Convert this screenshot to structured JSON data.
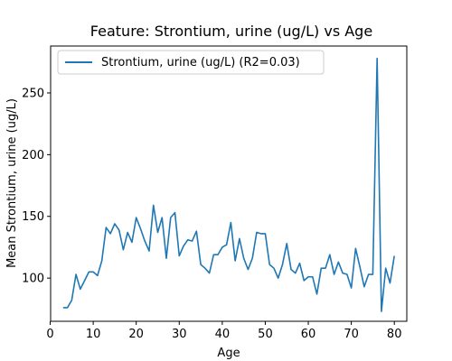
{
  "chart_data": {
    "type": "line",
    "title": "Feature: Strontium, urine (ug/L) vs Age",
    "xlabel": "Age",
    "ylabel": "Mean Strontium, urine (ug/L)",
    "xlim": [
      0.1,
      82.9
    ],
    "ylim": [
      65,
      288
    ],
    "xticks": [
      0,
      10,
      20,
      30,
      40,
      50,
      60,
      70,
      80
    ],
    "yticks": [
      100,
      150,
      200,
      250
    ],
    "grid": false,
    "legend": {
      "position": "top-left",
      "entries": [
        "Strontium, urine (ug/L) (R2=0.03)"
      ]
    },
    "series": [
      {
        "name": "Strontium, urine (ug/L) (R2=0.03)",
        "color": "#1f77b4",
        "x": [
          3,
          4,
          5,
          6,
          7,
          8,
          9,
          10,
          11,
          12,
          13,
          14,
          15,
          16,
          17,
          18,
          19,
          20,
          21,
          22,
          23,
          24,
          25,
          26,
          27,
          28,
          29,
          30,
          31,
          32,
          33,
          34,
          35,
          36,
          37,
          38,
          39,
          40,
          41,
          42,
          43,
          44,
          45,
          46,
          47,
          48,
          49,
          50,
          51,
          52,
          53,
          54,
          55,
          56,
          57,
          58,
          59,
          60,
          61,
          62,
          63,
          64,
          65,
          66,
          67,
          68,
          69,
          70,
          71,
          72,
          73,
          74,
          75,
          76,
          77,
          78,
          79,
          80
        ],
        "y": [
          76,
          76,
          82,
          103,
          91,
          98,
          105,
          105,
          102,
          114,
          141,
          136,
          144,
          139,
          123,
          137,
          129,
          149,
          140,
          130,
          122,
          159,
          137,
          149,
          116,
          149,
          153,
          118,
          126,
          131,
          130,
          138,
          111,
          108,
          104,
          119,
          119,
          125,
          127,
          145,
          114,
          132,
          116,
          107,
          116,
          137,
          136,
          136,
          111,
          108,
          100,
          111,
          128,
          107,
          104,
          112,
          98,
          101,
          101,
          87,
          108,
          108,
          119,
          103,
          113,
          104,
          103,
          92,
          124,
          109,
          93,
          103,
          103,
          278,
          73,
          108,
          96,
          118
        ]
      }
    ]
  }
}
